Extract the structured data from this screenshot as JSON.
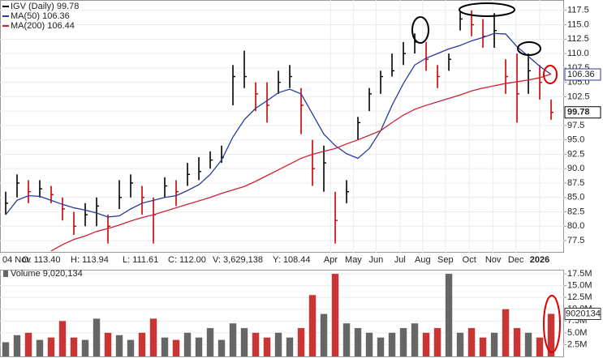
{
  "chart_data": [
    {
      "type": "hlc",
      "price_name": "IGV (Daily) 99.78",
      "info_bar": [
        "04 Nov",
        "O: 113.40",
        "H: 113.94",
        "L: 111.61",
        "C: 112.00",
        "V: 3,629,138",
        "Y: 108.44"
      ],
      "xlim": [
        -0.5,
        49.14
      ],
      "xticks": [
        {
          "value": 28.6,
          "label": "Apr"
        },
        {
          "value": 30.6,
          "label": "May"
        },
        {
          "value": 32.6,
          "label": "Jun"
        },
        {
          "value": 34.7,
          "label": "Jul"
        },
        {
          "value": 36.7,
          "label": "Aug"
        },
        {
          "value": 38.7,
          "label": "Sep"
        },
        {
          "value": 40.8,
          "label": "Oct"
        },
        {
          "value": 42.9,
          "label": "Nov"
        },
        {
          "value": 44.9,
          "label": "Dec"
        },
        {
          "value": 47,
          "label": "2026"
        }
      ],
      "ylim": [
        75.4,
        119.3
      ],
      "yticks": [
        77.5,
        {
          "value": 80,
          "label": "80.0"
        },
        82.5,
        {
          "value": 85,
          "label": "85.0"
        },
        87.5,
        {
          "value": 90,
          "label": "90.0"
        },
        92.5,
        {
          "value": 95,
          "label": "95.0"
        },
        97.5,
        {
          "value": 100,
          "label": "100.0"
        },
        102.5,
        {
          "value": 105,
          "label": "105.0"
        },
        107.5,
        {
          "value": 110,
          "label": "110.0"
        },
        112.5,
        {
          "value": 115,
          "label": "115.0"
        },
        117.5
      ],
      "grid": true,
      "up_color": "#000000",
      "down_color": "#cc0000",
      "high": [
        86,
        89,
        88,
        88,
        87,
        85,
        82.5,
        84,
        85,
        82,
        88,
        89,
        87,
        85,
        88.5,
        88,
        91,
        92,
        93,
        94,
        108,
        110.5,
        105,
        105,
        107,
        108,
        104,
        95,
        94,
        86,
        88,
        99,
        104,
        107,
        110,
        112,
        113.5,
        112,
        108,
        110,
        117.5,
        117.5,
        116,
        117,
        109,
        110,
        110,
        108,
        102
      ],
      "low": [
        82,
        85,
        84,
        85,
        84,
        81,
        78.5,
        80,
        80,
        77,
        83,
        85,
        82,
        77,
        85,
        83.5,
        87,
        88,
        90,
        91,
        101,
        104,
        100,
        98,
        103,
        104,
        96,
        87,
        86,
        77,
        84,
        95,
        100,
        103,
        106,
        108,
        110,
        107,
        104,
        107,
        114,
        113,
        111,
        111,
        103,
        98,
        103,
        102,
        98.5
      ],
      "close": [
        84,
        87.5,
        86,
        86.5,
        85.5,
        83,
        80,
        82,
        83.5,
        80,
        85,
        87.5,
        85,
        82,
        87,
        86,
        89,
        89.5,
        91.5,
        92,
        106,
        106,
        103,
        101,
        105,
        106,
        101,
        90,
        91,
        81,
        86,
        98,
        103,
        106,
        107,
        110,
        112,
        109,
        106,
        109,
        116,
        115,
        113,
        114,
        106,
        103,
        107,
        105,
        99.78
      ],
      "series": [
        {
          "name": "MA(50) 106.36",
          "color": "#2a3a9c",
          "values": [
            82,
            84.5,
            85.3,
            85.2,
            84.5,
            83.8,
            83.2,
            82.8,
            82.3,
            81.6,
            81.8,
            83,
            84,
            84.5,
            85,
            85.3,
            86.2,
            87.2,
            89,
            91.5,
            95.5,
            98.5,
            100.5,
            101.8,
            103.2,
            103.8,
            103,
            99.5,
            96,
            94,
            92.6,
            91.8,
            93.5,
            96.6,
            101,
            104.8,
            108,
            109.2,
            110,
            110.8,
            111.4,
            112.2,
            112.8,
            113.5,
            113.4,
            111.2,
            109.5,
            107.8,
            106.36
          ]
        },
        {
          "name": "MA(200) 106.44",
          "color": "#cc2233",
          "values": [
            null,
            null,
            null,
            null,
            75.7,
            76.8,
            77.7,
            78.3,
            79.1,
            79.6,
            80.2,
            80.9,
            81.5,
            82,
            82.6,
            83.2,
            83.8,
            84.4,
            85,
            85.7,
            86.3,
            86.9,
            87.8,
            88.8,
            89.8,
            90.8,
            91.8,
            92.5,
            93,
            93.5,
            94.3,
            95,
            95.8,
            96.6,
            98,
            99.3,
            100.3,
            101,
            101.6,
            102.2,
            102.8,
            103.5,
            104,
            104.4,
            104.8,
            105.1,
            105.4,
            105.8,
            106.44
          ]
        }
      ]
    },
    {
      "type": "bar",
      "title": "Volume 9,020,134",
      "xlim": [
        -0.5,
        49.14
      ],
      "ylim": [
        0,
        18.2
      ],
      "yticks": [
        {
          "value": 2.5,
          "label": "2.5M"
        },
        {
          "value": 5,
          "label": "5.0M"
        },
        {
          "value": 7.5,
          "label": "7.5M"
        },
        {
          "value": 10,
          "label": "10.0M"
        },
        {
          "value": 12.5,
          "label": "12.5M"
        },
        {
          "value": 15,
          "label": "15.0M"
        },
        {
          "value": 17.5,
          "label": "17.5M"
        }
      ],
      "grid": true,
      "up_color": "#666666",
      "down_color": "#cc3333",
      "values": [
        3,
        4.5,
        5,
        3.5,
        4,
        7.5,
        4,
        3.5,
        8,
        5,
        4.5,
        3.5,
        5,
        8,
        4,
        3.5,
        5,
        4,
        6,
        3.5,
        7,
        6,
        5,
        4,
        5,
        4,
        6,
        13,
        9,
        17.5,
        7,
        6,
        5,
        4,
        5,
        6,
        7,
        5,
        6,
        17.5,
        5,
        6,
        4,
        5,
        10,
        6,
        5,
        4,
        9.020134
      ],
      "value_labels": [
        null,
        null,
        null,
        null,
        null,
        null,
        null,
        null,
        null,
        null,
        null,
        null,
        null,
        null,
        null,
        null,
        null,
        null,
        null,
        null,
        null,
        null,
        null,
        null,
        null,
        null,
        null,
        null,
        null,
        null,
        null,
        null,
        null,
        null,
        null,
        null,
        null,
        null,
        null,
        null,
        null,
        null,
        null,
        null,
        null,
        null,
        null,
        null,
        "9020134"
      ]
    }
  ]
}
